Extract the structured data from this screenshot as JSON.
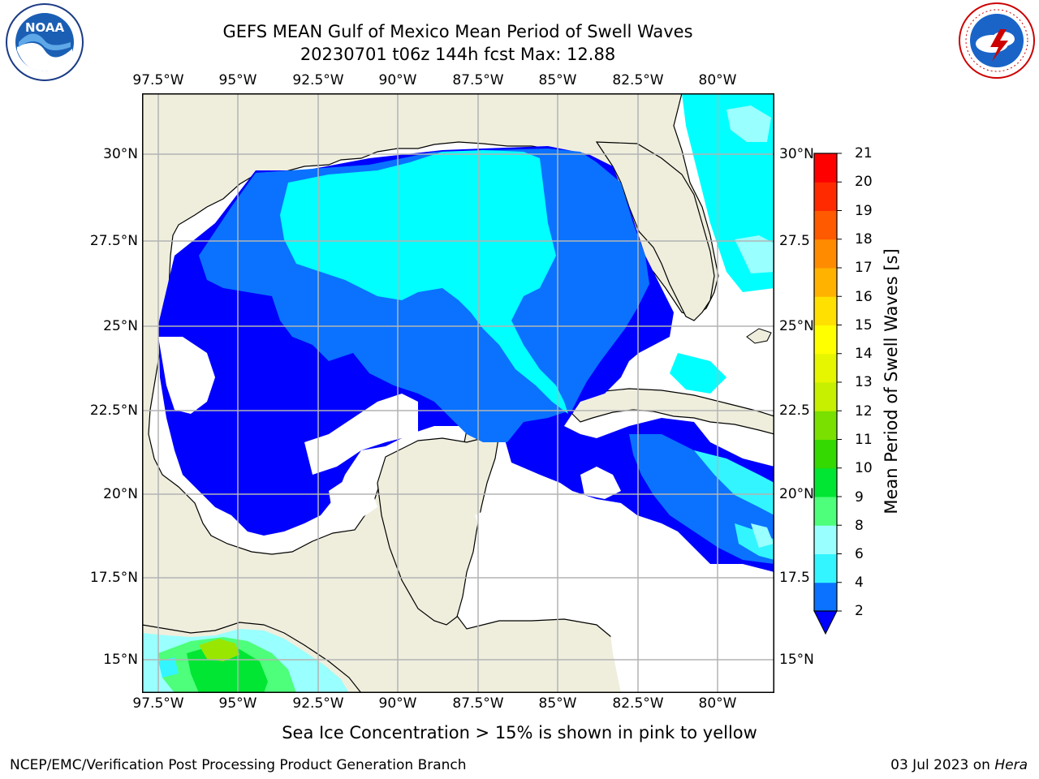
{
  "header": {
    "title_line1": "GEFS MEAN Gulf of Mexico Mean Period of Swell Waves",
    "title_line2": "20230701 t06z 144h fcst   Max: 12.88"
  },
  "axes": {
    "lon_labels": [
      "97.5°W",
      "95°W",
      "92.5°W",
      "90°W",
      "87.5°W",
      "85°W",
      "82.5°W",
      "80°W"
    ],
    "lat_labels": [
      "30°N",
      "27.5°N",
      "25°N",
      "22.5°N",
      "20°N",
      "17.5°N",
      "15°N"
    ],
    "lat_labels_right": [
      "30°N",
      "27.5",
      "25°N",
      "22.5",
      "20°N",
      "17.5",
      "15°N"
    ]
  },
  "colorbar": {
    "label": "Mean Period of Swell Waves [s]",
    "ticks": [
      "2",
      "4",
      "6",
      "8",
      "9",
      "10",
      "11",
      "12",
      "13",
      "14",
      "15",
      "16",
      "17",
      "18",
      "19",
      "20",
      "21"
    ],
    "colors": [
      "#0a72ff",
      "#00e1ff",
      "#33f5ff",
      "#99ffff",
      "#4dff7a",
      "#00e633",
      "#33d900",
      "#7ae000",
      "#c6f000",
      "#e6f500",
      "#ffff00",
      "#ffe000",
      "#ffb300",
      "#ff8c00",
      "#ff5a00",
      "#ff2a00",
      "#ff0000"
    ],
    "extend_color": "#0000ff"
  },
  "legend_colors": {
    "land": "#efeedd",
    "period_lt_2": "#0000ff",
    "period_2_4": "#0a72ff",
    "period_4_6": "#00ffff",
    "period_6_8": "#33f5ff",
    "period_8_9": "#99ffff",
    "period_9_10": "#4dff7a",
    "period_10_11": "#00e633",
    "period_11_12": "#33d900",
    "period_12_13": "#99e600"
  },
  "footer": {
    "note": "Sea Ice Concentration > 15% is shown in pink to yellow",
    "left": "NCEP/EMC/Verification Post Processing Product Generation Branch",
    "right_date": "03 Jul 2023 on",
    "right_host": "Hera"
  },
  "logos": {
    "noaa_text": "NOAA",
    "noaa_ring": "NATIONAL OCEANIC AND ATMOSPHERIC ADMINISTRATION · U.S. DEPARTMENT OF COMMERCE",
    "nws_ring": "NATIONAL WEATHER SERVICE"
  }
}
